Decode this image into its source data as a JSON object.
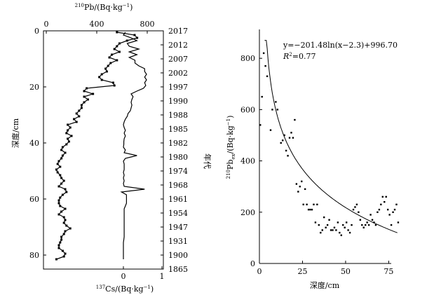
{
  "chart_data": [
    {
      "type": "line",
      "panel": "left",
      "depth_axis": {
        "label": "深度/cm",
        "ticks": [
          "0",
          "20",
          "40",
          "60",
          "80"
        ],
        "ylim": [
          0,
          83
        ]
      },
      "year_axis": {
        "label": "年代",
        "ticks": [
          "2017",
          "2012",
          "2007",
          "2002",
          "1997",
          "1990",
          "1988",
          "1985",
          "1982",
          "1980",
          "1974",
          "1968",
          "1961",
          "1954",
          "1947",
          "1931",
          "1900",
          "1865"
        ]
      },
      "top_axis": {
        "label_sup": "210",
        "label_rest": "Pb/(Bq·kg",
        "label_exp": "−1",
        "label_end": ")",
        "ticks": [
          "0",
          "400",
          "800"
        ],
        "xlim": [
          0,
          1000
        ]
      },
      "bottom_axis": {
        "label_sup": "137",
        "label_rest": "Cs/(Bq·kg",
        "label_exp": "−1",
        "label_end": ")",
        "ticks": [
          "0",
          "1"
        ],
        "xlim": [
          -1.5,
          1
        ]
      },
      "series": [
        {
          "depth": [
            0.5,
            1.5,
            2.5,
            3.5,
            4.5,
            5.5,
            6.5,
            7.5,
            8.5,
            9.5,
            10.5,
            11.5,
            12.5,
            13.5,
            14.5,
            15.5,
            16.5,
            17.5,
            18.5,
            19.5,
            20.5,
            21.5,
            22.5,
            23.5,
            24.5,
            25.5,
            26.5,
            27.5,
            28.5,
            29.5,
            30.5,
            31.5,
            32.5,
            33.5,
            34.5,
            35.5,
            36.5,
            37.5,
            38.5,
            39.5,
            40.5,
            41.5,
            42.5,
            43.5,
            44.5,
            45.5,
            46.5,
            47.5,
            48.5,
            49.5,
            50.5,
            51.5,
            52.5,
            53.5,
            54.5,
            55.5,
            56.5,
            57.5,
            58.5,
            59.5,
            60.5,
            61.5,
            62.5,
            63.5,
            64.5,
            65.5,
            66.5,
            67.5,
            68.5,
            69.5,
            70.5,
            71.5,
            72.5,
            73.5,
            74.5,
            75.5,
            76.5,
            77.5,
            78.5,
            79.5,
            80.5,
            81.5
          ],
          "values": [
            560,
            700,
            720,
            640,
            580,
            560,
            540,
            580,
            520,
            500,
            560,
            510,
            490,
            470,
            480,
            440,
            420,
            440,
            530,
            540,
            320,
            300,
            370,
            300,
            330,
            300,
            280,
            280,
            260,
            240,
            260,
            220,
            240,
            170,
            190,
            170,
            160,
            200,
            170,
            180,
            160,
            130,
            120,
            150,
            130,
            120,
            100,
            90,
            110,
            80,
            90,
            110,
            120,
            140,
            120,
            100,
            150,
            160,
            130,
            110,
            100,
            100,
            110,
            150,
            120,
            100,
            140,
            150,
            140,
            160,
            190,
            150,
            140,
            120,
            120,
            110,
            100,
            100,
            130,
            150,
            140,
            80
          ]
        },
        {
          "depth": [
            0.5,
            1.5,
            2.5,
            3.5,
            4.5,
            5.5,
            6.5,
            7.5,
            8.5,
            9.5,
            10.5,
            11.5,
            12.5,
            13.5,
            14.5,
            15.5,
            16.5,
            17.5,
            18.5,
            19.5,
            20.5,
            21.5,
            22.5,
            23.5,
            24.5,
            25.5,
            26.5,
            27.5,
            28.5,
            29.5,
            30.5,
            31.5,
            32.5,
            33.5,
            34.5,
            35.5,
            36.5,
            37.5,
            38.5,
            39.5,
            40.5,
            41.5,
            42.5,
            43.5,
            44.5,
            45.5,
            46.5,
            47.5,
            48.5,
            49.5,
            50.5,
            51.5,
            52.5,
            53.5,
            54.5,
            55.5,
            56.5,
            57.5,
            58.5,
            59.5,
            60.5,
            61.5,
            62.5,
            63.5,
            64.5,
            65.5,
            66.5,
            67.5,
            68.5,
            69.5,
            70.5,
            71.5,
            72.5,
            73.5,
            74.5,
            75.5,
            76.5,
            77.5,
            78.5,
            79.5,
            80.5,
            81.5
          ],
          "values": [
            0.05,
            0.0,
            0.2,
            0.35,
            0.1,
            0.15,
            0.4,
            0.15,
            0.35,
            0.15,
            0.3,
            0.3,
            0.4,
            0.55,
            0.55,
            0.6,
            0.55,
            0.6,
            0.55,
            0.58,
            0.52,
            0.35,
            0.2,
            0.25,
            0.22,
            0.2,
            0.22,
            0.2,
            0.18,
            0.12,
            0.1,
            0.05,
            0.02,
            0.0,
            0.02,
            0.05,
            0.02,
            0.05,
            0.02,
            0.01,
            0.01,
            0.0,
            0.05,
            0.02,
            0.35,
            0.05,
            0.0,
            0.02,
            0.02,
            0.02,
            0.0,
            0.02,
            0.0,
            0.02,
            0.0,
            0.02,
            0.55,
            -0.05,
            0.08,
            0.08,
            0.08,
            0.08,
            0.05,
            0.02,
            0.02,
            0.02,
            0.02,
            0.02,
            0.02,
            0.02,
            0.02,
            0.02,
            0.02,
            0.02,
            0.01,
            0.0,
            0.0,
            0.0,
            0.0,
            0.0,
            0.0,
            0.0
          ]
        }
      ]
    },
    {
      "type": "scatter",
      "panel": "right",
      "xlabel": "深度/cm",
      "ylabel_sup": "210",
      "ylabel_main": "Pb",
      "ylabel_sub": "ex",
      "ylabel_rest": "/(Bq·kg",
      "ylabel_exp": "−1",
      "ylabel_end": ")",
      "xlim": [
        0,
        85
      ],
      "ylim": [
        0,
        900
      ],
      "xticks": [
        "0",
        "25",
        "50",
        "75"
      ],
      "yticks": [
        "0",
        "200",
        "400",
        "600",
        "800"
      ],
      "equation": "y=−201.48ln(x−2.3)+996.70",
      "r2_label": "R",
      "r2_value": "=0.77",
      "fit": {
        "a": -201.48,
        "b": 2.3,
        "c": 996.7,
        "xrange": [
          3,
          80
        ]
      },
      "points": [
        [
          0.5,
          540
        ],
        [
          1.5,
          650
        ],
        [
          2.5,
          820
        ],
        [
          3.5,
          770
        ],
        [
          4.5,
          730
        ],
        [
          6.5,
          520
        ],
        [
          7.5,
          600
        ],
        [
          9.5,
          630
        ],
        [
          10.5,
          600
        ],
        [
          12.5,
          470
        ],
        [
          13.5,
          480
        ],
        [
          14.5,
          500
        ],
        [
          15.5,
          440
        ],
        [
          16.5,
          420
        ],
        [
          17.5,
          490
        ],
        [
          18.5,
          510
        ],
        [
          19.5,
          490
        ],
        [
          20.5,
          560
        ],
        [
          21.5,
          310
        ],
        [
          22.5,
          280
        ],
        [
          23.5,
          300
        ],
        [
          24.5,
          320
        ],
        [
          25.5,
          230
        ],
        [
          26.5,
          290
        ],
        [
          27.5,
          230
        ],
        [
          28.5,
          210
        ],
        [
          29.5,
          210
        ],
        [
          30.5,
          210
        ],
        [
          31.5,
          230
        ],
        [
          32.5,
          160
        ],
        [
          33.5,
          230
        ],
        [
          34.5,
          150
        ],
        [
          35.5,
          120
        ],
        [
          36.5,
          130
        ],
        [
          37.5,
          180
        ],
        [
          38.5,
          140
        ],
        [
          39.5,
          150
        ],
        [
          40.5,
          170
        ],
        [
          41.5,
          130
        ],
        [
          42.5,
          130
        ],
        [
          43.5,
          140
        ],
        [
          44.5,
          130
        ],
        [
          45.5,
          160
        ],
        [
          46.5,
          120
        ],
        [
          47.5,
          110
        ],
        [
          48.5,
          150
        ],
        [
          49.5,
          140
        ],
        [
          50.5,
          160
        ],
        [
          51.5,
          130
        ],
        [
          52.5,
          120
        ],
        [
          53.5,
          150
        ],
        [
          54.5,
          210
        ],
        [
          55.5,
          220
        ],
        [
          56.5,
          230
        ],
        [
          57.5,
          200
        ],
        [
          58.5,
          170
        ],
        [
          59.5,
          150
        ],
        [
          60.5,
          140
        ],
        [
          61.5,
          150
        ],
        [
          62.5,
          160
        ],
        [
          63.5,
          150
        ],
        [
          64.5,
          190
        ],
        [
          65.5,
          170
        ],
        [
          66.5,
          160
        ],
        [
          67.5,
          150
        ],
        [
          68.5,
          200
        ],
        [
          69.5,
          210
        ],
        [
          70.5,
          230
        ],
        [
          71.5,
          260
        ],
        [
          72.5,
          240
        ],
        [
          73.5,
          260
        ],
        [
          74.5,
          210
        ],
        [
          75.5,
          190
        ],
        [
          76.5,
          150
        ],
        [
          77.5,
          200
        ],
        [
          78.5,
          210
        ],
        [
          79.5,
          230
        ],
        [
          80.5,
          160
        ]
      ]
    }
  ]
}
